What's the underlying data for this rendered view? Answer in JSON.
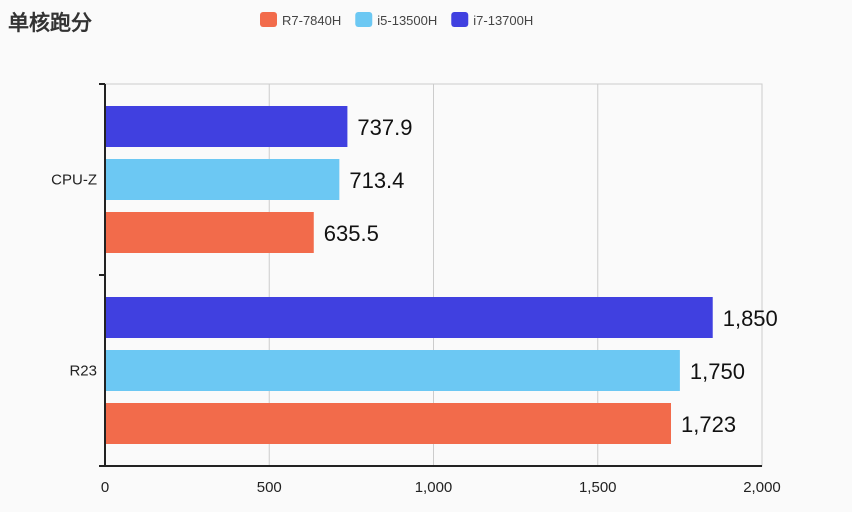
{
  "chart_data": {
    "type": "bar",
    "orientation": "horizontal",
    "title": "单核跑分",
    "categories": [
      "CPU-Z",
      "R23"
    ],
    "series": [
      {
        "name": "R7-7840H",
        "color": "#f26b4b",
        "values": [
          635.5,
          1723
        ],
        "labels": [
          "635.5",
          "1,723"
        ]
      },
      {
        "name": "i5-13500H",
        "color": "#6cc8f3",
        "values": [
          713.4,
          1750
        ],
        "labels": [
          "713.4",
          "1,750"
        ]
      },
      {
        "name": "i7-13700H",
        "color": "#4040e0",
        "values": [
          737.9,
          1850
        ],
        "labels": [
          "737.9",
          "1,850"
        ]
      }
    ],
    "xlim": [
      0,
      2000
    ],
    "xticks": [
      0,
      500,
      1000,
      1500,
      2000
    ],
    "xtick_labels": [
      "0",
      "500",
      "1,000",
      "1,500",
      "2,000"
    ],
    "grid": true,
    "legend": "top-center"
  }
}
